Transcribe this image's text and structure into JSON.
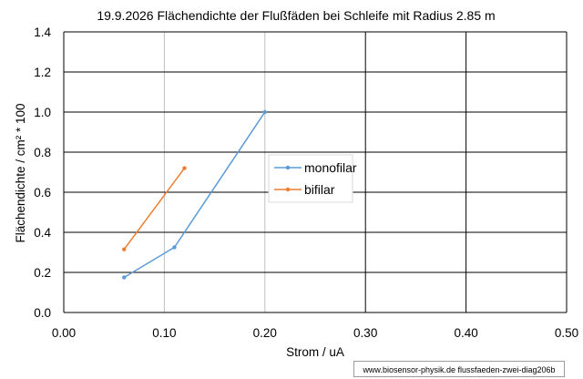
{
  "chart_data": {
    "type": "line",
    "title": "19.9.2026 Flächendichte der Flußfäden bei Schleife mit Radius 2.85 m",
    "xlabel": "Strom / uA",
    "ylabel": "Flächendichte / cm² * 100",
    "xlim": [
      0,
      0.5
    ],
    "ylim": [
      0,
      1.4
    ],
    "x_ticks": [
      "0.00",
      "0.10",
      "0.20",
      "0.30",
      "0.40",
      "0.50"
    ],
    "y_ticks": [
      "0.0",
      "0.2",
      "0.4",
      "0.6",
      "0.8",
      "1.0",
      "1.2",
      "1.4"
    ],
    "grid": true,
    "legend_position": "center",
    "series": [
      {
        "name": "monofilar",
        "color": "#5b9bd5",
        "x": [
          0.06,
          0.11,
          0.2
        ],
        "y": [
          0.175,
          0.325,
          1.0
        ]
      },
      {
        "name": "bifilar",
        "color": "#ed7d31",
        "x": [
          0.06,
          0.12
        ],
        "y": [
          0.315,
          0.72
        ]
      }
    ]
  },
  "footer": {
    "credit": "www.biosensor-physik.de  flussfaeden-zwei-diag206b"
  }
}
